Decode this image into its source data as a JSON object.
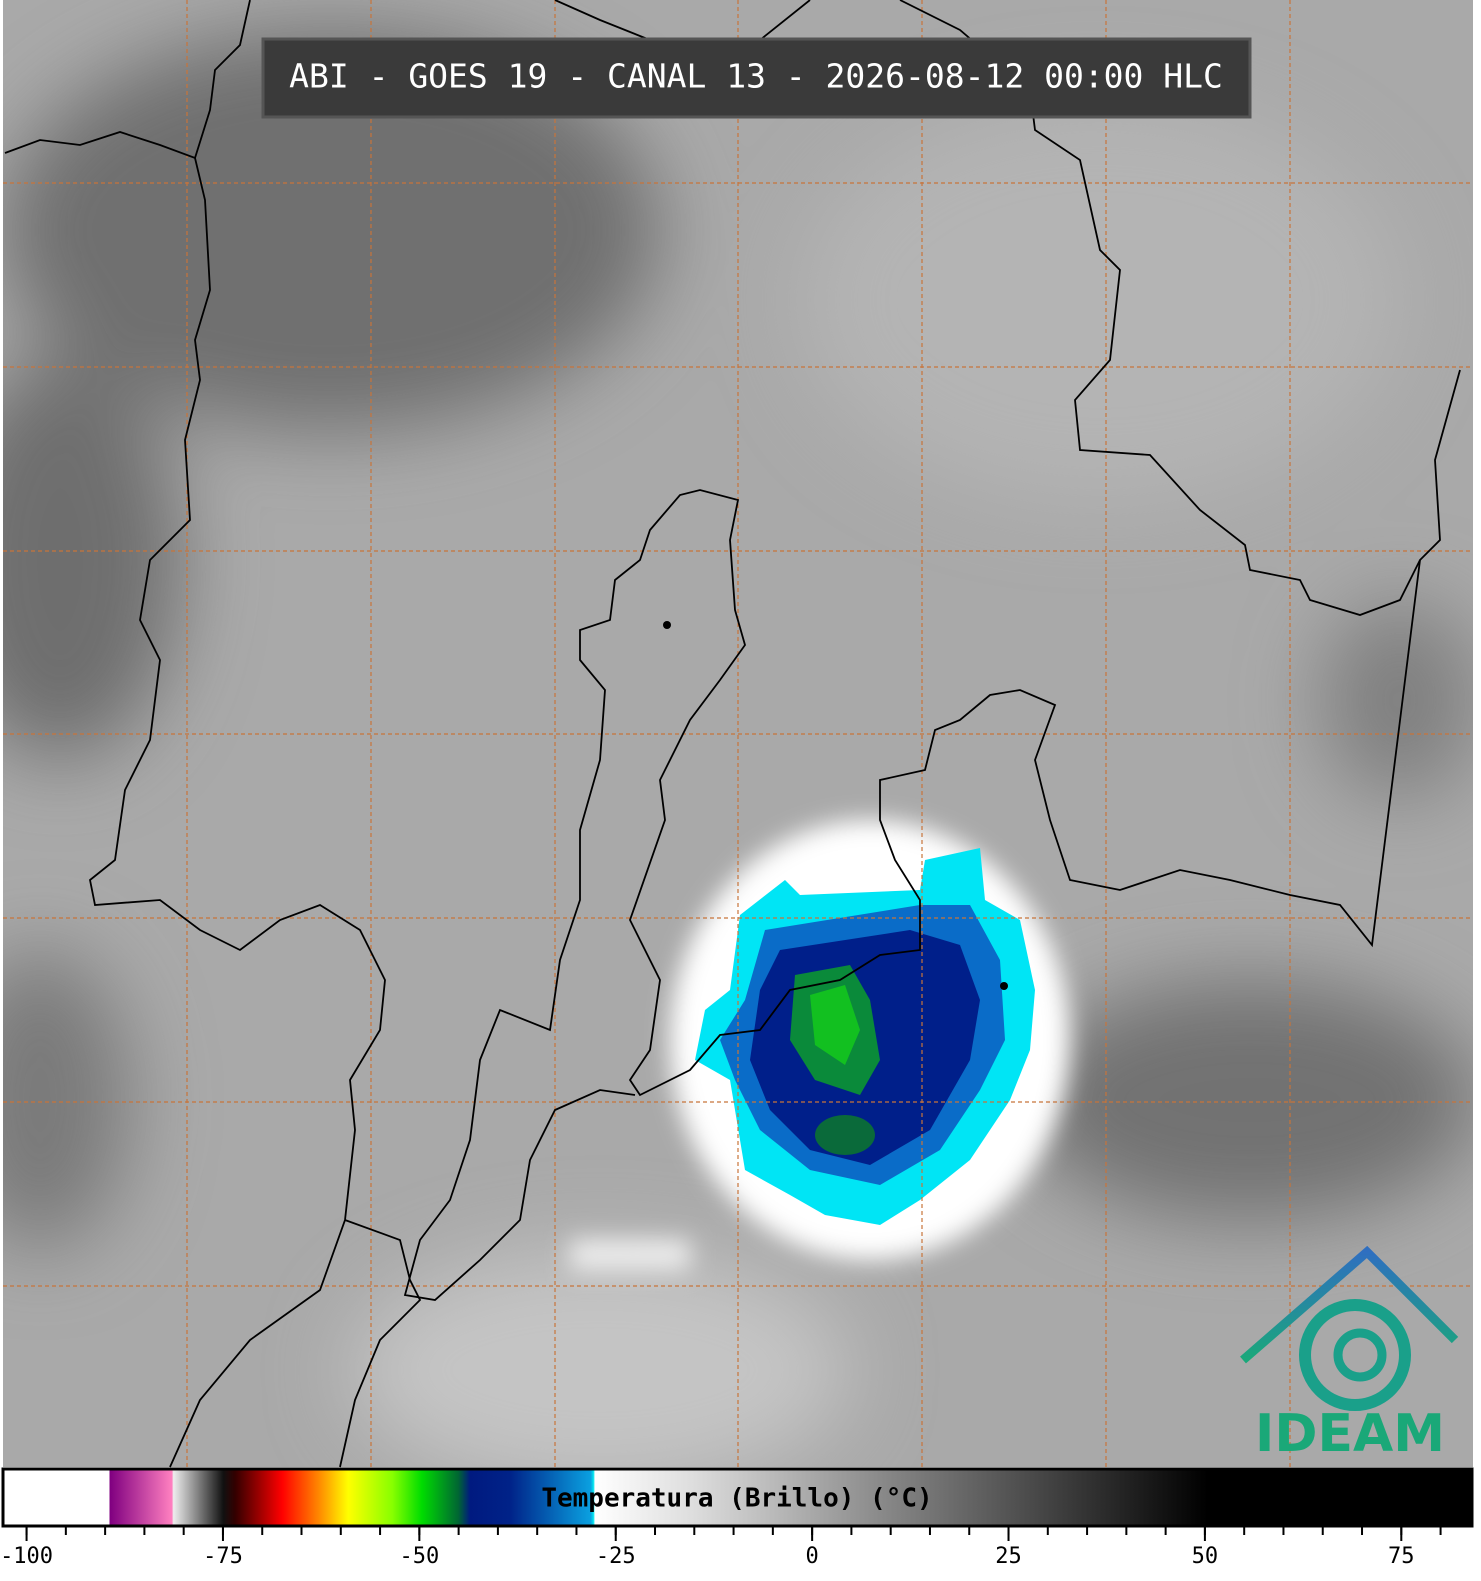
{
  "title": "ABI - GOES 19 - CANAL 13 - 2026-08-12 00:00 HLC",
  "logo": "IDEAM",
  "colorbar": {
    "label": "Temperatura (Brillo) (°C)",
    "xlim": [
      -103,
      84
    ],
    "xticks": [
      -100,
      -75,
      -50,
      -25,
      0,
      25,
      50,
      75
    ],
    "minor_ticks": [
      -100,
      -95,
      -90,
      -85,
      -80,
      -75,
      -70,
      -65,
      -60,
      -55,
      -50,
      -45,
      -40,
      -35,
      -30,
      -25,
      -20,
      -15,
      -10,
      -5,
      0,
      5,
      10,
      15,
      20,
      25,
      30,
      35,
      40,
      45,
      50,
      55,
      60,
      65,
      70,
      75,
      80
    ]
  }
}
